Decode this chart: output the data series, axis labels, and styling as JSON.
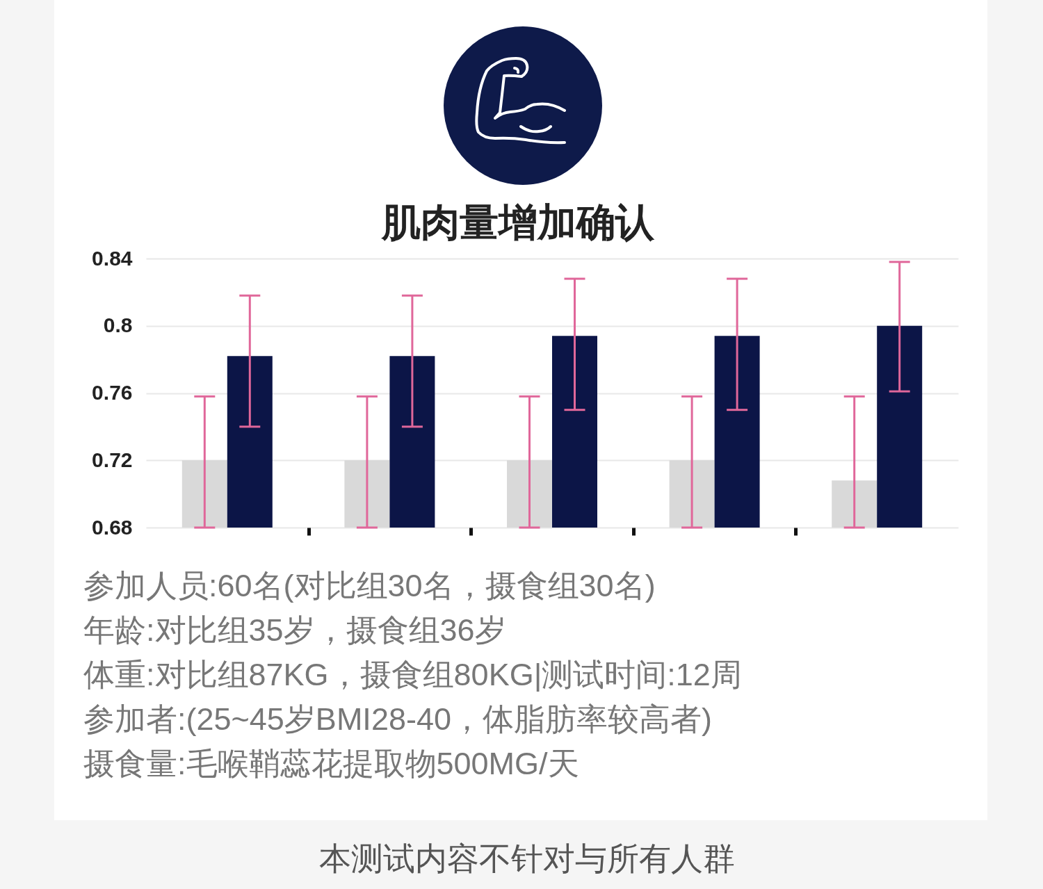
{
  "chart_data": {
    "type": "bar",
    "title": "肌肉量增加确认",
    "categories": [
      null,
      null,
      null,
      null,
      null
    ],
    "series": [
      {
        "color": "#d9d9d9",
        "values": [
          0.72,
          0.72,
          0.72,
          0.72,
          0.708
        ],
        "errors": [
          [
            0.68,
            0.758
          ],
          [
            0.68,
            0.758
          ],
          [
            0.68,
            0.758
          ],
          [
            0.68,
            0.758
          ],
          [
            0.68,
            0.758
          ]
        ]
      },
      {
        "color": "#0c1547",
        "values": [
          0.782,
          0.782,
          0.794,
          0.794,
          0.8
        ],
        "errors": [
          [
            0.74,
            0.818
          ],
          [
            0.74,
            0.818
          ],
          [
            0.75,
            0.828
          ],
          [
            0.75,
            0.828
          ],
          [
            0.761,
            0.838
          ]
        ]
      }
    ],
    "ylim": [
      0.68,
      0.84
    ],
    "yticks": [
      0.68,
      0.72,
      0.76,
      0.8,
      0.84
    ],
    "grid": "y",
    "annotations": [
      "参加人员:60名(对比组30名，摄食组30名)",
      "年龄:对比组35岁，摄食组36岁",
      "体重:对比组87KG，摄食组80KG|测试时间:12周",
      "参加者:(25~45岁BMI28-40，体脂肪率较高者)",
      "摄食量:毛喉鞘蕊花提取物500MG/天",
      "本测试内容不针对与所有人群"
    ]
  }
}
